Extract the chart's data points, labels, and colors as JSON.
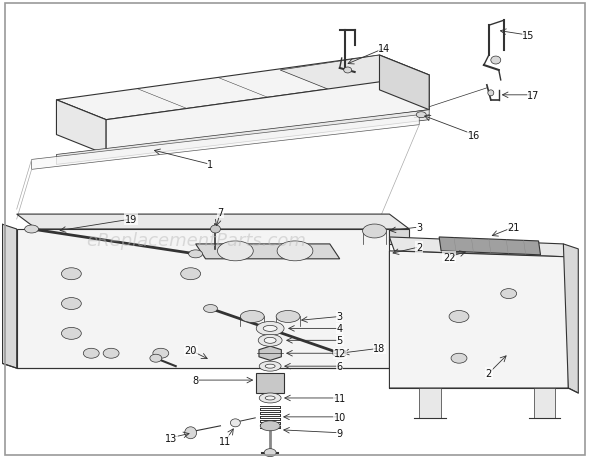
{
  "background_color": "#ffffff",
  "watermark_text": "eReplacementParts.com",
  "watermark_color": "#bbbbbb",
  "watermark_fontsize": 13,
  "watermark_alpha": 0.5,
  "border_color": "#999999",
  "border_linewidth": 1.2,
  "figsize": [
    5.9,
    4.6
  ],
  "dpi": 100,
  "label_fontsize": 7.0,
  "label_color": "#111111",
  "line_color": "#333333",
  "fill_light": "#f4f4f4",
  "fill_mid": "#e8e8e8",
  "fill_dark": "#d8d8d8",
  "fill_darkest": "#c8c8c8"
}
